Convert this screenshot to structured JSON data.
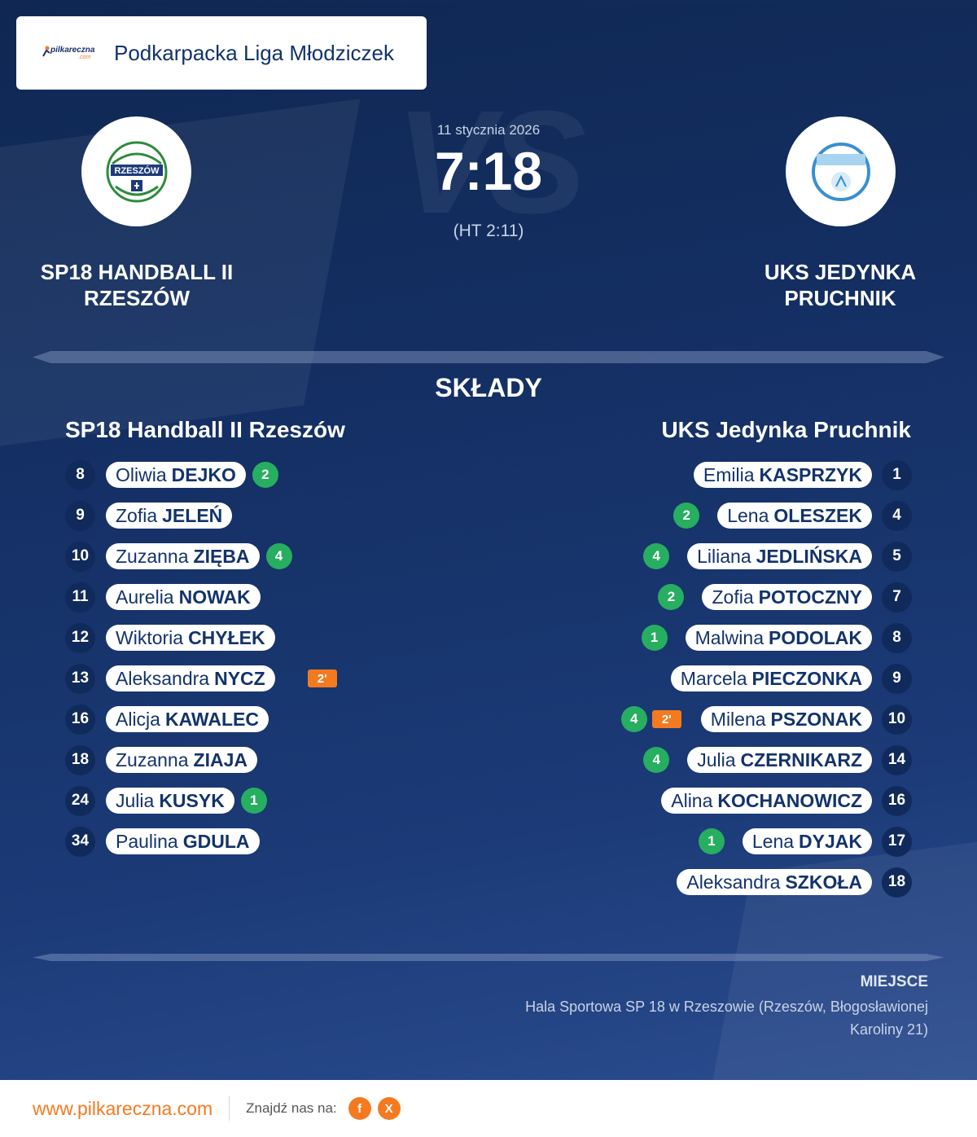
{
  "league": {
    "name": "Podkarpacka Liga Młodziczek",
    "logo_text": "pilkareczna",
    "logo_sub": ".com"
  },
  "match": {
    "date": "11 stycznia 2026",
    "score": "7:18",
    "halftime": "(HT 2:11)",
    "vs_watermark": "VS"
  },
  "home": {
    "name_upper": "SP18 HANDBALL II RZESZÓW",
    "name": "SP18 Handball II Rzeszów",
    "crest_text": "RZESZÓW"
  },
  "away": {
    "name_upper": "UKS JEDYNKA PRUCHNIK",
    "name": "UKS Jedynka Pruchnik"
  },
  "section_title": "SKŁADY",
  "home_players": [
    {
      "number": "8",
      "first": "Oliwia",
      "last": "DEJKO",
      "goals": "2",
      "penalty": ""
    },
    {
      "number": "9",
      "first": "Zofia",
      "last": "JELEŃ",
      "goals": "",
      "penalty": ""
    },
    {
      "number": "10",
      "first": "Zuzanna",
      "last": "ZIĘBA",
      "goals": "4",
      "penalty": ""
    },
    {
      "number": "11",
      "first": "Aurelia",
      "last": "NOWAK",
      "goals": "",
      "penalty": ""
    },
    {
      "number": "12",
      "first": "Wiktoria",
      "last": "CHYŁEK",
      "goals": "",
      "penalty": ""
    },
    {
      "number": "13",
      "first": "Aleksandra",
      "last": "NYCZ",
      "goals": "",
      "penalty": "2'"
    },
    {
      "number": "16",
      "first": "Alicja",
      "last": "KAWALEC",
      "goals": "",
      "penalty": ""
    },
    {
      "number": "18",
      "first": "Zuzanna",
      "last": "ZIAJA",
      "goals": "",
      "penalty": ""
    },
    {
      "number": "24",
      "first": "Julia",
      "last": "KUSYK",
      "goals": "1",
      "penalty": ""
    },
    {
      "number": "34",
      "first": "Paulina",
      "last": "GDULA",
      "goals": "",
      "penalty": ""
    }
  ],
  "away_players": [
    {
      "number": "1",
      "first": "Emilia",
      "last": "KASPRZYK",
      "goals": "",
      "penalty": ""
    },
    {
      "number": "4",
      "first": "Lena",
      "last": "OLESZEK",
      "goals": "2",
      "penalty": ""
    },
    {
      "number": "5",
      "first": "Liliana",
      "last": "JEDLIŃSKA",
      "goals": "4",
      "penalty": ""
    },
    {
      "number": "7",
      "first": "Zofia",
      "last": "POTOCZNY",
      "goals": "2",
      "penalty": ""
    },
    {
      "number": "8",
      "first": "Malwina",
      "last": "PODOLAK",
      "goals": "1",
      "penalty": ""
    },
    {
      "number": "9",
      "first": "Marcela",
      "last": "PIECZONKA",
      "goals": "",
      "penalty": ""
    },
    {
      "number": "10",
      "first": "Milena",
      "last": "PSZONAK",
      "goals": "4",
      "penalty": "2'"
    },
    {
      "number": "14",
      "first": "Julia",
      "last": "CZERNIKARZ",
      "goals": "4",
      "penalty": ""
    },
    {
      "number": "16",
      "first": "Alina",
      "last": "KOCHANOWICZ",
      "goals": "",
      "penalty": ""
    },
    {
      "number": "17",
      "first": "Lena",
      "last": "DYJAK",
      "goals": "1",
      "penalty": ""
    },
    {
      "number": "18",
      "first": "Aleksandra",
      "last": "SZKOŁA",
      "goals": "",
      "penalty": ""
    }
  ],
  "venue": {
    "label": "MIEJSCE",
    "text": "Hala Sportowa SP 18 w Rzeszowie (Rzeszów, Błogosławionej Karoliny 21)"
  },
  "footer": {
    "link": "www.pilkareczna.com",
    "find_us": "Znajdź nas na:",
    "social": [
      {
        "icon": "facebook-icon",
        "glyph": "f"
      },
      {
        "icon": "x-icon",
        "glyph": "X"
      }
    ]
  },
  "colors": {
    "accent": "#f47a20",
    "goal": "#27ae60",
    "navy": "#13336b"
  }
}
